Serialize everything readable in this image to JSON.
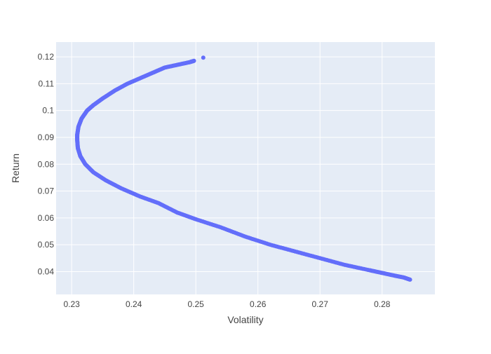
{
  "chart_data": {
    "type": "scatter",
    "title": "",
    "xlabel": "Volatility",
    "ylabel": "Return",
    "xlim": [
      0.2275,
      0.2885
    ],
    "ylim": [
      0.0315,
      0.1255
    ],
    "xticks": [
      0.23,
      0.24,
      0.25,
      0.26,
      0.27,
      0.28
    ],
    "yticks": [
      0.04,
      0.05,
      0.06,
      0.07,
      0.08,
      0.09,
      0.1,
      0.11,
      0.12
    ],
    "xtick_labels": [
      "0.23",
      "0.24",
      "0.25",
      "0.26",
      "0.27",
      "0.28"
    ],
    "ytick_labels": [
      "0.04",
      "0.05",
      "0.06",
      "0.07",
      "0.08",
      "0.09",
      "0.1",
      "0.11",
      "0.12"
    ],
    "grid": true,
    "colors": {
      "marker": "#636efa",
      "plot_bg": "#e5ecf6",
      "grid": "#ffffff"
    },
    "series": [
      {
        "points": [
          [
            0.2512,
            0.1197
          ],
          [
            0.2497,
            0.1185
          ],
          [
            0.249,
            0.118
          ],
          [
            0.247,
            0.117
          ],
          [
            0.245,
            0.116
          ],
          [
            0.243,
            0.114
          ],
          [
            0.241,
            0.112
          ],
          [
            0.239,
            0.11
          ],
          [
            0.237,
            0.1075
          ],
          [
            0.235,
            0.1045
          ],
          [
            0.2335,
            0.102
          ],
          [
            0.2325,
            0.1
          ],
          [
            0.2316,
            0.097
          ],
          [
            0.2311,
            0.094
          ],
          [
            0.2309,
            0.091
          ],
          [
            0.2309,
            0.089
          ],
          [
            0.231,
            0.086
          ],
          [
            0.2314,
            0.083
          ],
          [
            0.2322,
            0.08
          ],
          [
            0.2335,
            0.077
          ],
          [
            0.2355,
            0.074
          ],
          [
            0.238,
            0.071
          ],
          [
            0.241,
            0.068
          ],
          [
            0.244,
            0.0655
          ],
          [
            0.247,
            0.062
          ],
          [
            0.25,
            0.0595
          ],
          [
            0.254,
            0.0565
          ],
          [
            0.258,
            0.053
          ],
          [
            0.262,
            0.05
          ],
          [
            0.266,
            0.0475
          ],
          [
            0.27,
            0.045
          ],
          [
            0.274,
            0.0425
          ],
          [
            0.278,
            0.0405
          ],
          [
            0.28,
            0.0395
          ],
          [
            0.282,
            0.0385
          ],
          [
            0.2835,
            0.0378
          ],
          [
            0.2845,
            0.037
          ]
        ]
      }
    ]
  }
}
